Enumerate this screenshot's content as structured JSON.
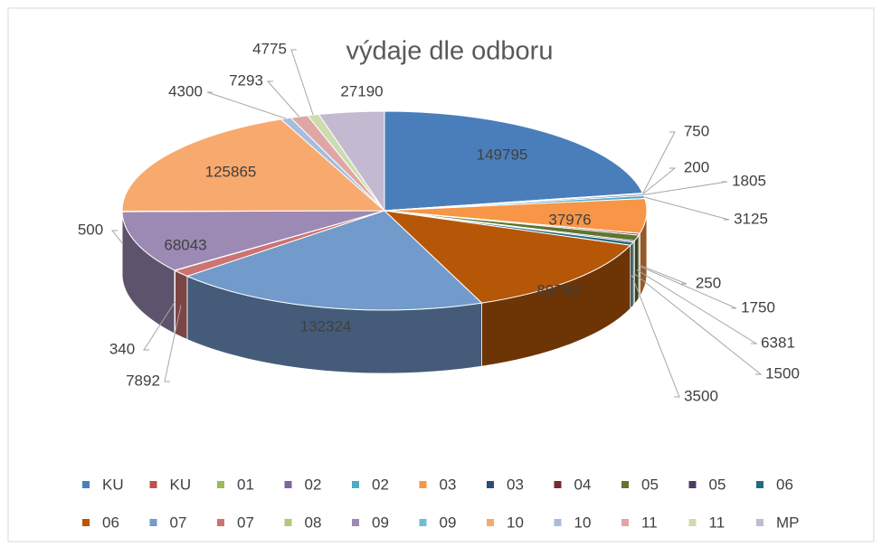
{
  "chart_data": {
    "type": "pie3d",
    "title": "výdaje dle odboru",
    "categories": [
      "KU",
      "KU",
      "01",
      "02",
      "02",
      "03",
      "03",
      "04",
      "05",
      "05",
      "06",
      "06",
      "07",
      "07",
      "08",
      "09",
      "09",
      "10",
      "10",
      "11",
      "11",
      "MP"
    ],
    "values": [
      149795,
      750,
      200,
      1805,
      3125,
      37976,
      250,
      1750,
      6381,
      1500,
      3500,
      89780,
      132324,
      7892,
      340,
      68043,
      500,
      125865,
      4300,
      7293,
      4775,
      27190
    ],
    "colors": [
      "#4a7ebb",
      "#c0504d",
      "#9bbb59",
      "#8064a2",
      "#4bacc6",
      "#f79646",
      "#2c4d75",
      "#772c2a",
      "#5f7530",
      "#4d3b62",
      "#276a7c",
      "#b65708",
      "#729aca",
      "#cd7371",
      "#afc97a",
      "#9c8ab4",
      "#6fbdd1",
      "#f8a96e",
      "#a6bddd",
      "#dea7a6",
      "#cddcaf",
      "#c3b9d0"
    ],
    "legend": "bottom"
  }
}
